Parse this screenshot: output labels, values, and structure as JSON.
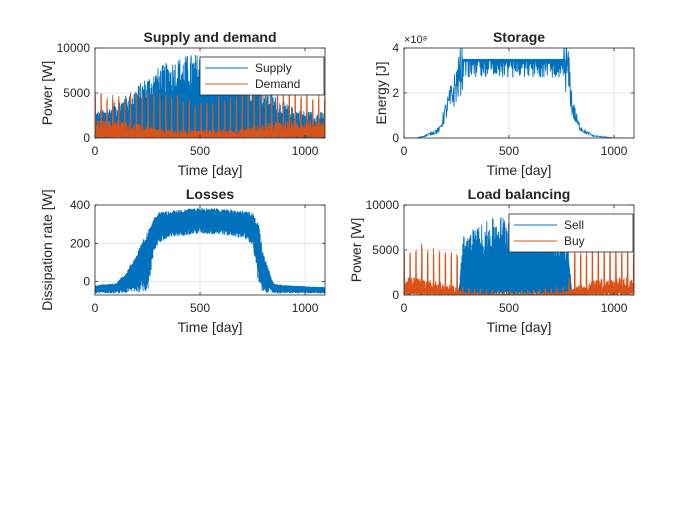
{
  "figure": {
    "background": "#ffffff"
  },
  "colors": {
    "series1": "#0072BD",
    "series2": "#D95319",
    "axis": "#262626",
    "grid": "#dfdfdf",
    "legend_border": "#262626"
  },
  "chart_data": [
    {
      "id": "supply-demand",
      "type": "line",
      "title": "Supply and demand",
      "xlabel": "Time [day]",
      "ylabel": "Power [W]",
      "xlim": [
        0,
        1095
      ],
      "ylim": [
        0,
        10000
      ],
      "xticks": [
        0,
        500,
        1000
      ],
      "xtick_labels": [
        "0",
        "500",
        "1000"
      ],
      "yticks": [
        0,
        5000,
        10000
      ],
      "ytick_labels": [
        "0",
        "5000",
        "10000"
      ],
      "grid": true,
      "legend": {
        "position": "top-right",
        "entries": [
          "Supply",
          "Demand"
        ]
      },
      "series": [
        {
          "name": "Supply",
          "color": "#0072BD",
          "x": [
            0,
            50,
            100,
            150,
            200,
            250,
            300,
            350,
            400,
            450,
            500,
            550,
            600,
            650,
            700,
            750,
            800,
            850,
            900,
            950,
            1000,
            1050,
            1095
          ],
          "y_max": [
            3000,
            3200,
            4000,
            4800,
            5800,
            6900,
            7800,
            8500,
            9000,
            9300,
            9400,
            9300,
            9000,
            8500,
            7800,
            6900,
            5800,
            4800,
            4000,
            3300,
            3000,
            2900,
            2900
          ],
          "y_min": [
            0,
            0,
            0,
            0,
            0,
            0,
            0,
            0,
            0,
            0,
            0,
            0,
            0,
            0,
            0,
            0,
            0,
            0,
            0,
            0,
            0,
            0,
            0
          ]
        },
        {
          "name": "Demand",
          "color": "#D95319",
          "x": [
            0,
            50,
            100,
            150,
            200,
            250,
            300,
            350,
            400,
            450,
            500,
            550,
            600,
            650,
            700,
            750,
            800,
            850,
            900,
            950,
            1000,
            1050,
            1095
          ],
          "peak": [
            5000,
            5000,
            5100,
            5200,
            5200,
            5100,
            5100,
            5000,
            4800,
            4300,
            4200,
            4400,
            4700,
            5000,
            5200,
            5300,
            5300,
            5200,
            5200,
            5100,
            5100,
            5000,
            5000
          ],
          "base": [
            1500,
            1500,
            1500,
            1400,
            1200,
            1000,
            800,
            700,
            700,
            700,
            700,
            700,
            700,
            700,
            800,
            1000,
            1200,
            1400,
            1500,
            1500,
            1500,
            1500,
            1500
          ],
          "spike_period_days": 28
        }
      ]
    },
    {
      "id": "storage",
      "type": "line",
      "title": "Storage",
      "xlabel": "Time [day]",
      "ylabel": "Energy [J]",
      "xlim": [
        0,
        1095
      ],
      "ylim": [
        0,
        4
      ],
      "y_exponent_label": "×10⁸",
      "xticks": [
        0,
        500,
        1000
      ],
      "xtick_labels": [
        "0",
        "500",
        "1000"
      ],
      "yticks": [
        0,
        2,
        4
      ],
      "ytick_labels": [
        "0",
        "2",
        "4"
      ],
      "grid": true,
      "series": [
        {
          "name": "",
          "color": "#0072BD",
          "x": [
            0,
            60,
            80,
            100,
            140,
            170,
            200,
            230,
            260,
            280,
            300,
            400,
            500,
            600,
            700,
            760,
            780,
            790,
            800,
            830,
            860,
            900,
            950,
            1000,
            1040,
            1095
          ],
          "y": [
            0,
            0,
            0.05,
            0.1,
            0.25,
            0.4,
            1.3,
            2.0,
            2.8,
            3.5,
            3.5,
            3.5,
            3.5,
            3.5,
            3.5,
            3.5,
            3.2,
            2.5,
            1.5,
            0.6,
            0.3,
            0.1,
            0.05,
            0,
            0,
            0
          ],
          "upper": 3.5,
          "dip_depth": 0.8
        }
      ]
    },
    {
      "id": "losses",
      "type": "line",
      "title": "Losses",
      "xlabel": "Time [day]",
      "ylabel": "Dissipation rate [W]",
      "xlim": [
        0,
        1095
      ],
      "ylim": [
        -70,
        400
      ],
      "xticks": [
        0,
        500,
        1000
      ],
      "xtick_labels": [
        "0",
        "500",
        "1000"
      ],
      "yticks": [
        0,
        200,
        400
      ],
      "ytick_labels": [
        "0",
        "200",
        "400"
      ],
      "grid": true,
      "series": [
        {
          "name": "",
          "color": "#0072BD",
          "x": [
            0,
            100,
            150,
            200,
            250,
            280,
            300,
            400,
            500,
            600,
            700,
            750,
            780,
            800,
            850,
            900,
            1000,
            1095
          ],
          "upper": [
            -20,
            -10,
            50,
            150,
            260,
            340,
            360,
            375,
            385,
            380,
            370,
            360,
            300,
            150,
            -10,
            -20,
            -25,
            -30
          ],
          "lower": [
            -60,
            -60,
            -60,
            -55,
            -50,
            150,
            200,
            240,
            250,
            245,
            230,
            190,
            -40,
            -55,
            -60,
            -60,
            -60,
            -60
          ]
        }
      ]
    },
    {
      "id": "load-balancing",
      "type": "line",
      "title": "Load balancing",
      "xlabel": "Time [day]",
      "ylabel": "Power [W]",
      "xlim": [
        0,
        1095
      ],
      "ylim": [
        0,
        10000
      ],
      "xticks": [
        0,
        500,
        1000
      ],
      "xtick_labels": [
        "0",
        "500",
        "1000"
      ],
      "yticks": [
        0,
        5000,
        10000
      ],
      "ytick_labels": [
        "0",
        "5000",
        "10000"
      ],
      "grid": true,
      "legend": {
        "position": "top-right",
        "entries": [
          "Sell",
          "Buy"
        ]
      },
      "series": [
        {
          "name": "Sell",
          "color": "#0072BD",
          "x": [
            0,
            240,
            260,
            280,
            300,
            350,
            400,
            450,
            500,
            550,
            600,
            650,
            700,
            750,
            780,
            800,
            1095
          ],
          "y_max": [
            0,
            0,
            0,
            6500,
            7000,
            7600,
            8300,
            8800,
            9100,
            9000,
            8700,
            8200,
            7500,
            6700,
            6000,
            0,
            0
          ],
          "y_min": [
            0,
            0,
            0,
            0,
            0,
            0,
            0,
            0,
            0,
            0,
            0,
            0,
            0,
            0,
            0,
            0,
            0
          ]
        },
        {
          "name": "Buy",
          "color": "#D95319",
          "x": [
            0,
            50,
            100,
            150,
            200,
            250,
            280,
            300,
            400,
            500,
            600,
            700,
            780,
            800,
            850,
            900,
            950,
            1000,
            1050,
            1095
          ],
          "peak": [
            5500,
            5600,
            5700,
            5500,
            5200,
            5000,
            1000,
            800,
            600,
            500,
            600,
            800,
            1000,
            5000,
            5200,
            5500,
            5700,
            5700,
            5600,
            5500
          ],
          "base": [
            1500,
            1500,
            1400,
            1200,
            900,
            700,
            300,
            200,
            100,
            100,
            100,
            200,
            300,
            700,
            900,
            1200,
            1400,
            1500,
            1500,
            1500
          ],
          "spike_period_days": 28
        }
      ]
    }
  ]
}
